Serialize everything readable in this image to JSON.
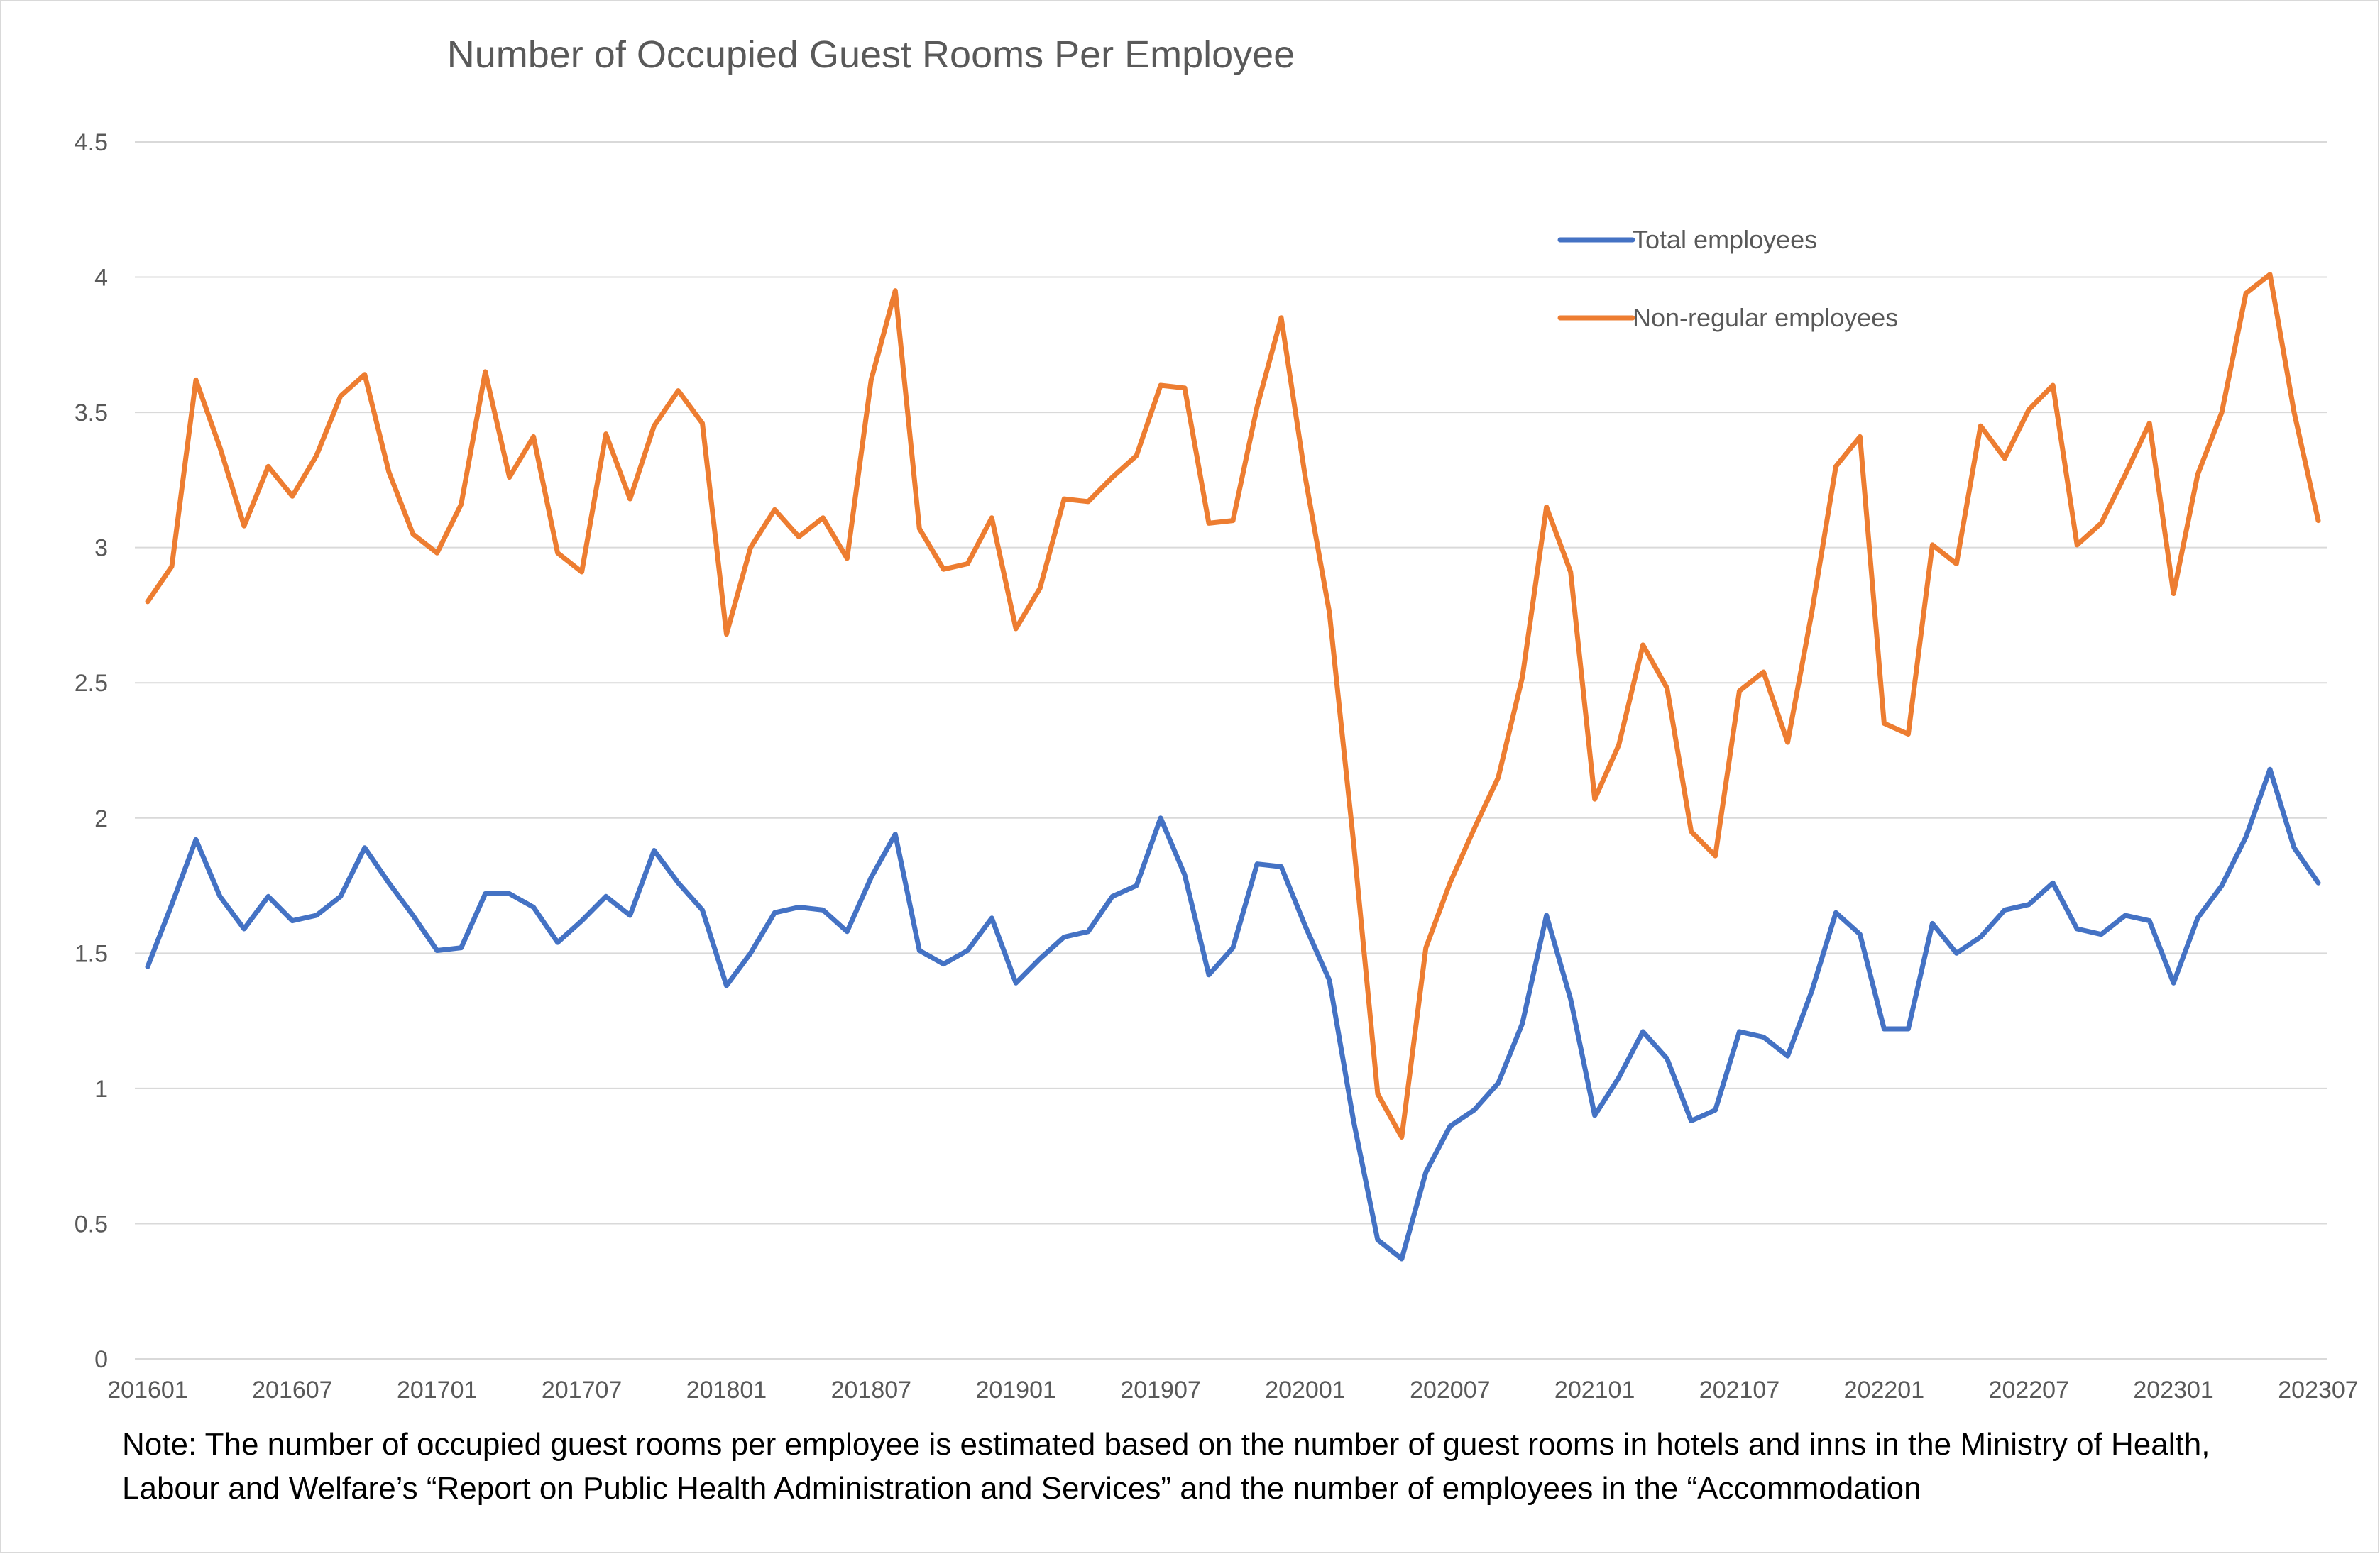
{
  "colors": {
    "total": "#4472C4",
    "non_regular": "#ED7D31",
    "grid": "#d9d9d9",
    "text": "#595959"
  },
  "chart_data": {
    "type": "line",
    "title": "Number of Occupied Guest Rooms Per Employee",
    "xlabel": "",
    "ylabel": "",
    "ylim": [
      0,
      4.5
    ],
    "yticks": [
      "0",
      "0.5",
      "1",
      "1.5",
      "2",
      "2.5",
      "3",
      "3.5",
      "4",
      "4.5"
    ],
    "xtick_labels": [
      "201601",
      "201607",
      "201701",
      "201707",
      "201801",
      "201807",
      "201901",
      "201907",
      "202001",
      "202007",
      "202101",
      "202107",
      "202201",
      "202207",
      "202301",
      "202307"
    ],
    "grid": true,
    "legend_position": "upper-right",
    "x": [
      "201601",
      "201602",
      "201603",
      "201604",
      "201605",
      "201606",
      "201607",
      "201608",
      "201609",
      "201610",
      "201611",
      "201612",
      "201701",
      "201702",
      "201703",
      "201704",
      "201705",
      "201706",
      "201707",
      "201708",
      "201709",
      "201710",
      "201711",
      "201712",
      "201801",
      "201802",
      "201803",
      "201804",
      "201805",
      "201806",
      "201807",
      "201808",
      "201809",
      "201810",
      "201811",
      "201812",
      "201901",
      "201902",
      "201903",
      "201904",
      "201905",
      "201906",
      "201907",
      "201908",
      "201909",
      "201910",
      "201911",
      "201912",
      "202001",
      "202002",
      "202003",
      "202004",
      "202005",
      "202006",
      "202007",
      "202008",
      "202009",
      "202010",
      "202011",
      "202012",
      "202101",
      "202102",
      "202103",
      "202104",
      "202105",
      "202106",
      "202107",
      "202108",
      "202109",
      "202110",
      "202111",
      "202112",
      "202201",
      "202202",
      "202203",
      "202204",
      "202205",
      "202206",
      "202207",
      "202208",
      "202209",
      "202210",
      "202211",
      "202212",
      "202301",
      "202302",
      "202303",
      "202304",
      "202305",
      "202306",
      "202307"
    ],
    "series": [
      {
        "name": "Total employees",
        "color": "#4472C4",
        "values": [
          1.45,
          1.68,
          1.92,
          1.71,
          1.59,
          1.71,
          1.62,
          1.64,
          1.71,
          1.89,
          1.76,
          1.64,
          1.51,
          1.52,
          1.72,
          1.72,
          1.67,
          1.54,
          1.62,
          1.71,
          1.64,
          1.88,
          1.76,
          1.66,
          1.38,
          1.5,
          1.65,
          1.67,
          1.66,
          1.58,
          1.78,
          1.94,
          1.51,
          1.46,
          1.51,
          1.63,
          1.39,
          1.48,
          1.56,
          1.58,
          1.71,
          1.75,
          2.0,
          1.79,
          1.42,
          1.52,
          1.83,
          1.82,
          1.6,
          1.4,
          0.88,
          0.44,
          0.37,
          0.69,
          0.86,
          0.92,
          1.02,
          1.24,
          1.64,
          1.33,
          0.9,
          1.04,
          1.21,
          1.11,
          0.88,
          0.92,
          1.21,
          1.19,
          1.12,
          1.36,
          1.65,
          1.57,
          1.22,
          1.22,
          1.61,
          1.5,
          1.56,
          1.66,
          1.68,
          1.76,
          1.59,
          1.57,
          1.64,
          1.62,
          1.39,
          1.63,
          1.75,
          1.93,
          2.18,
          1.89,
          1.76
        ]
      },
      {
        "name": "Non-regular employees",
        "color": "#ED7D31",
        "values": [
          2.8,
          2.93,
          3.62,
          3.37,
          3.08,
          3.3,
          3.19,
          3.34,
          3.56,
          3.64,
          3.28,
          3.05,
          2.98,
          3.16,
          3.65,
          3.26,
          3.41,
          2.98,
          2.91,
          3.42,
          3.18,
          3.45,
          3.58,
          3.46,
          2.68,
          3.0,
          3.14,
          3.04,
          3.11,
          2.96,
          3.62,
          3.95,
          3.07,
          2.92,
          2.94,
          3.11,
          2.7,
          2.85,
          3.18,
          3.17,
          3.26,
          3.34,
          3.6,
          3.59,
          3.09,
          3.1,
          3.52,
          3.85,
          3.26,
          2.76,
          1.91,
          0.98,
          0.82,
          1.52,
          1.76,
          1.96,
          2.15,
          2.52,
          3.15,
          2.91,
          2.07,
          2.27,
          2.64,
          2.48,
          1.95,
          1.86,
          2.47,
          2.54,
          2.28,
          2.76,
          3.3,
          3.41,
          2.35,
          2.31,
          3.01,
          2.94,
          3.45,
          3.33,
          3.51,
          3.6,
          3.01,
          3.09,
          3.27,
          3.46,
          2.83,
          3.27,
          3.5,
          3.94,
          4.01,
          3.5,
          3.1
        ]
      }
    ],
    "note": "Note: The number of occupied guest rooms per employee is estimated based on the number of guest rooms in hotels and inns in the Ministry of Health, Labour and Welfare’s “Report on Public Health Administration and Services” and the number of employees in the “Accommodation"
  }
}
